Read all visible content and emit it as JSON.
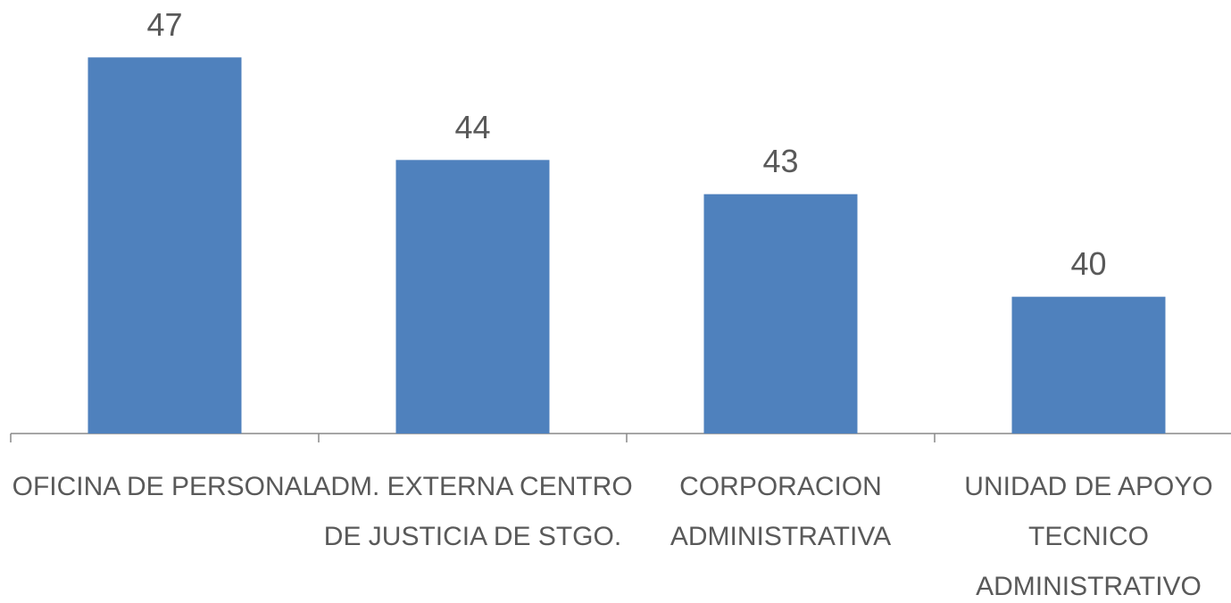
{
  "chart_data": {
    "type": "bar",
    "categories": [
      [
        "OFICINA DE PERSONAL"
      ],
      [
        "ADM. EXTERNA CENTRO",
        "DE JUSTICIA DE STGO."
      ],
      [
        "CORPORACION",
        "ADMINISTRATIVA"
      ],
      [
        "UNIDAD DE APOYO",
        "TECNICO",
        "ADMINISTRATIVO"
      ]
    ],
    "values": [
      47,
      44,
      43,
      40
    ],
    "color": "#4f81bd",
    "ylim": [
      36,
      48
    ],
    "data_labels": true
  }
}
